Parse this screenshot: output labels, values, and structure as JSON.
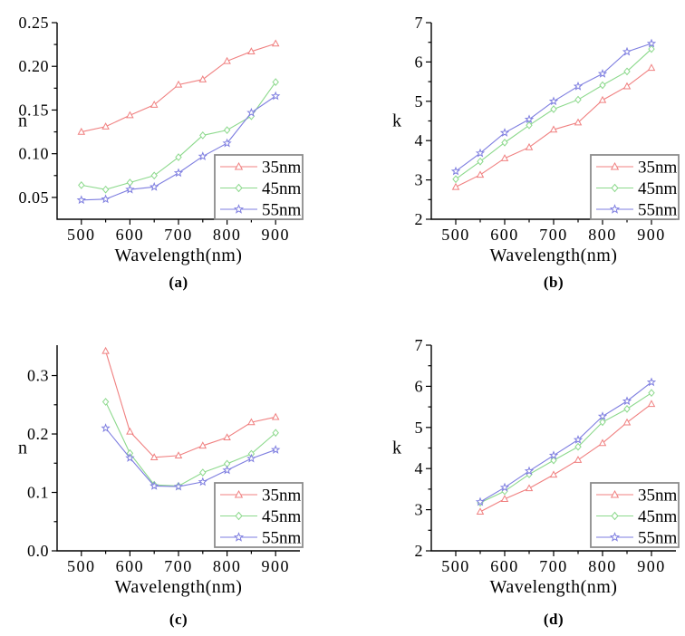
{
  "figure": {
    "background": "#ffffff",
    "text_color": "#000000",
    "axis_color": "#000000",
    "legend_border_color": "#8c8c8c",
    "legend_background": "#ffffff"
  },
  "chart_data": [
    {
      "id": "a",
      "type": "line",
      "caption": "(a)",
      "xlabel": "Wavelength(nm)",
      "ylabel": "n",
      "xlim": [
        450,
        950
      ],
      "ylim": [
        0.025,
        0.25
      ],
      "xticks": [
        500,
        600,
        700,
        800,
        900
      ],
      "xminor": [
        550,
        650,
        750,
        850
      ],
      "ytick_values": [
        0.05,
        0.1,
        0.15,
        0.2,
        0.25
      ],
      "ytick_labels": [
        "0.05",
        "0.10",
        "0.15",
        "0.20",
        "0.25"
      ],
      "yminor": [
        0.075,
        0.125,
        0.175,
        0.225
      ],
      "legend_position": "bottom-right",
      "grid": false,
      "x": [
        500,
        550,
        600,
        650,
        700,
        750,
        800,
        850,
        900
      ],
      "series": [
        {
          "name": "35nm",
          "marker": "triangle",
          "color": "#f08080",
          "values": [
            0.125,
            0.131,
            0.144,
            0.156,
            0.179,
            0.185,
            0.206,
            0.217,
            0.226
          ]
        },
        {
          "name": "45nm",
          "marker": "diamond",
          "color": "#8cd98c",
          "values": [
            0.064,
            0.059,
            0.067,
            0.075,
            0.096,
            0.121,
            0.127,
            0.143,
            0.182
          ]
        },
        {
          "name": "55nm",
          "marker": "star",
          "color": "#7e7ee0",
          "values": [
            0.047,
            0.048,
            0.059,
            0.062,
            0.078,
            0.097,
            0.112,
            0.147,
            0.166
          ]
        }
      ]
    },
    {
      "id": "b",
      "type": "line",
      "caption": "(b)",
      "xlabel": "Wavelength(nm)",
      "ylabel": "k",
      "xlim": [
        450,
        950
      ],
      "ylim": [
        2,
        7
      ],
      "xticks": [
        500,
        600,
        700,
        800,
        900
      ],
      "xminor": [
        550,
        650,
        750,
        850
      ],
      "ytick_values": [
        2,
        3,
        4,
        5,
        6,
        7
      ],
      "ytick_labels": [
        "2",
        "3",
        "4",
        "5",
        "6",
        "7"
      ],
      "yminor": [
        2.5,
        3.5,
        4.5,
        5.5,
        6.5
      ],
      "legend_position": "bottom-right",
      "grid": false,
      "x": [
        500,
        550,
        600,
        650,
        700,
        750,
        800,
        850,
        900
      ],
      "series": [
        {
          "name": "35nm",
          "marker": "triangle",
          "color": "#f08080",
          "values": [
            2.82,
            3.13,
            3.55,
            3.83,
            4.28,
            4.46,
            5.03,
            5.38,
            5.85
          ]
        },
        {
          "name": "45nm",
          "marker": "diamond",
          "color": "#8cd98c",
          "values": [
            3.02,
            3.47,
            3.95,
            4.39,
            4.8,
            5.04,
            5.41,
            5.76,
            6.33
          ]
        },
        {
          "name": "55nm",
          "marker": "star",
          "color": "#7e7ee0",
          "values": [
            3.22,
            3.68,
            4.2,
            4.54,
            5.0,
            5.38,
            5.7,
            6.26,
            6.47
          ]
        }
      ]
    },
    {
      "id": "c",
      "type": "line",
      "caption": "(c)",
      "xlabel": "Wavelength(nm)",
      "ylabel": "n",
      "xlim": [
        450,
        950
      ],
      "ylim": [
        0.0,
        0.352
      ],
      "xticks": [
        500,
        600,
        700,
        800,
        900
      ],
      "xminor": [
        550,
        650,
        750,
        850
      ],
      "ytick_values": [
        0.0,
        0.1,
        0.2,
        0.3
      ],
      "ytick_labels": [
        "0.0",
        "0.1",
        "0.2",
        "0.3"
      ],
      "yminor": [
        0.05,
        0.15,
        0.25
      ],
      "legend_position": "bottom-right",
      "grid": false,
      "x": [
        550,
        600,
        650,
        700,
        750,
        800,
        850,
        900
      ],
      "series": [
        {
          "name": "35nm",
          "marker": "triangle",
          "color": "#f08080",
          "values": [
            0.342,
            0.204,
            0.16,
            0.163,
            0.18,
            0.194,
            0.22,
            0.229
          ]
        },
        {
          "name": "45nm",
          "marker": "diamond",
          "color": "#8cd98c",
          "values": [
            0.255,
            0.167,
            0.113,
            0.111,
            0.134,
            0.149,
            0.166,
            0.202
          ]
        },
        {
          "name": "55nm",
          "marker": "star",
          "color": "#7e7ee0",
          "values": [
            0.21,
            0.159,
            0.111,
            0.11,
            0.118,
            0.138,
            0.158,
            0.173
          ]
        }
      ]
    },
    {
      "id": "d",
      "type": "line",
      "caption": "(d)",
      "xlabel": "Wavelength(nm)",
      "ylabel": "k",
      "xlim": [
        450,
        950
      ],
      "ylim": [
        2,
        7
      ],
      "xticks": [
        500,
        600,
        700,
        800,
        900
      ],
      "xminor": [
        550,
        650,
        750,
        850
      ],
      "ytick_values": [
        2,
        3,
        4,
        5,
        6,
        7
      ],
      "ytick_labels": [
        "2",
        "3",
        "4",
        "5",
        "6",
        "7"
      ],
      "yminor": [
        2.5,
        3.5,
        4.5,
        5.5,
        6.5
      ],
      "legend_position": "bottom-right",
      "grid": false,
      "x": [
        550,
        600,
        650,
        700,
        750,
        800,
        850,
        900
      ],
      "series": [
        {
          "name": "35nm",
          "marker": "triangle",
          "color": "#f08080",
          "values": [
            2.95,
            3.26,
            3.52,
            3.85,
            4.21,
            4.62,
            5.12,
            5.57
          ]
        },
        {
          "name": "45nm",
          "marker": "diamond",
          "color": "#8cd98c",
          "values": [
            3.17,
            3.45,
            3.86,
            4.2,
            4.53,
            5.13,
            5.45,
            5.84
          ]
        },
        {
          "name": "55nm",
          "marker": "star",
          "color": "#7e7ee0",
          "values": [
            3.19,
            3.54,
            3.94,
            4.32,
            4.7,
            5.27,
            5.64,
            6.1
          ]
        }
      ]
    }
  ]
}
